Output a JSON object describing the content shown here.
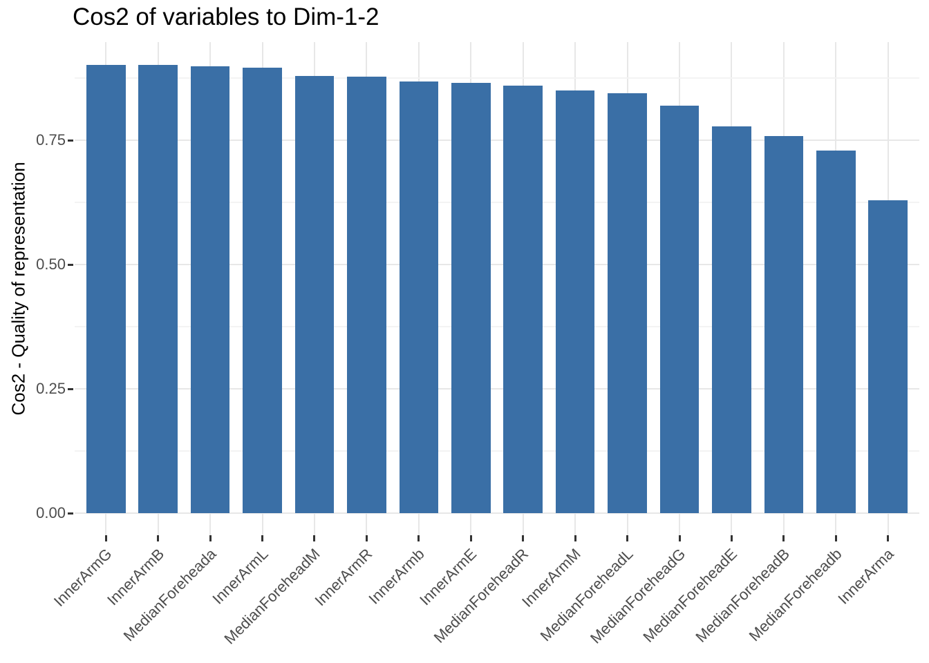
{
  "chart_data": {
    "type": "bar",
    "title": "Cos2 of variables to Dim-1-2",
    "xlabel": "",
    "ylabel": "Cos2 - Quality of representation",
    "categories": [
      "InnerArmG",
      "InnerArmB",
      "MedianForeheada",
      "InnerArmL",
      "MedianForeheadM",
      "InnerArmR",
      "InnerArmb",
      "InnerArmE",
      "MedianForeheadR",
      "InnerArmM",
      "MedianForeheadL",
      "MedianForeheadG",
      "MedianForeheadE",
      "MedianForeheadB",
      "MedianForeheadb",
      "InnerArma"
    ],
    "values": [
      0.902,
      0.901,
      0.899,
      0.896,
      0.879,
      0.878,
      0.868,
      0.865,
      0.86,
      0.85,
      0.845,
      0.82,
      0.778,
      0.758,
      0.729,
      0.629
    ],
    "ylim": [
      0,
      0.947
    ],
    "yticks": [
      0,
      0.25,
      0.5,
      0.75
    ],
    "ytick_labels": [
      "0.00",
      "0.25",
      "0.50",
      "0.75"
    ],
    "minor_yticks": [
      0.125,
      0.375,
      0.625,
      0.875
    ],
    "grid": "major+minor",
    "legend": "none",
    "x_label_angle": 45,
    "bar_color": "#3a6fa6"
  },
  "colors": {
    "bar": "#3a6fa6",
    "grid_major": "#e7e7e7",
    "grid_minor": "#f3f3f3",
    "tick_mark": "#333333",
    "axis_text": "#4d4d4d",
    "title_text": "#000000",
    "background": "#ffffff"
  }
}
